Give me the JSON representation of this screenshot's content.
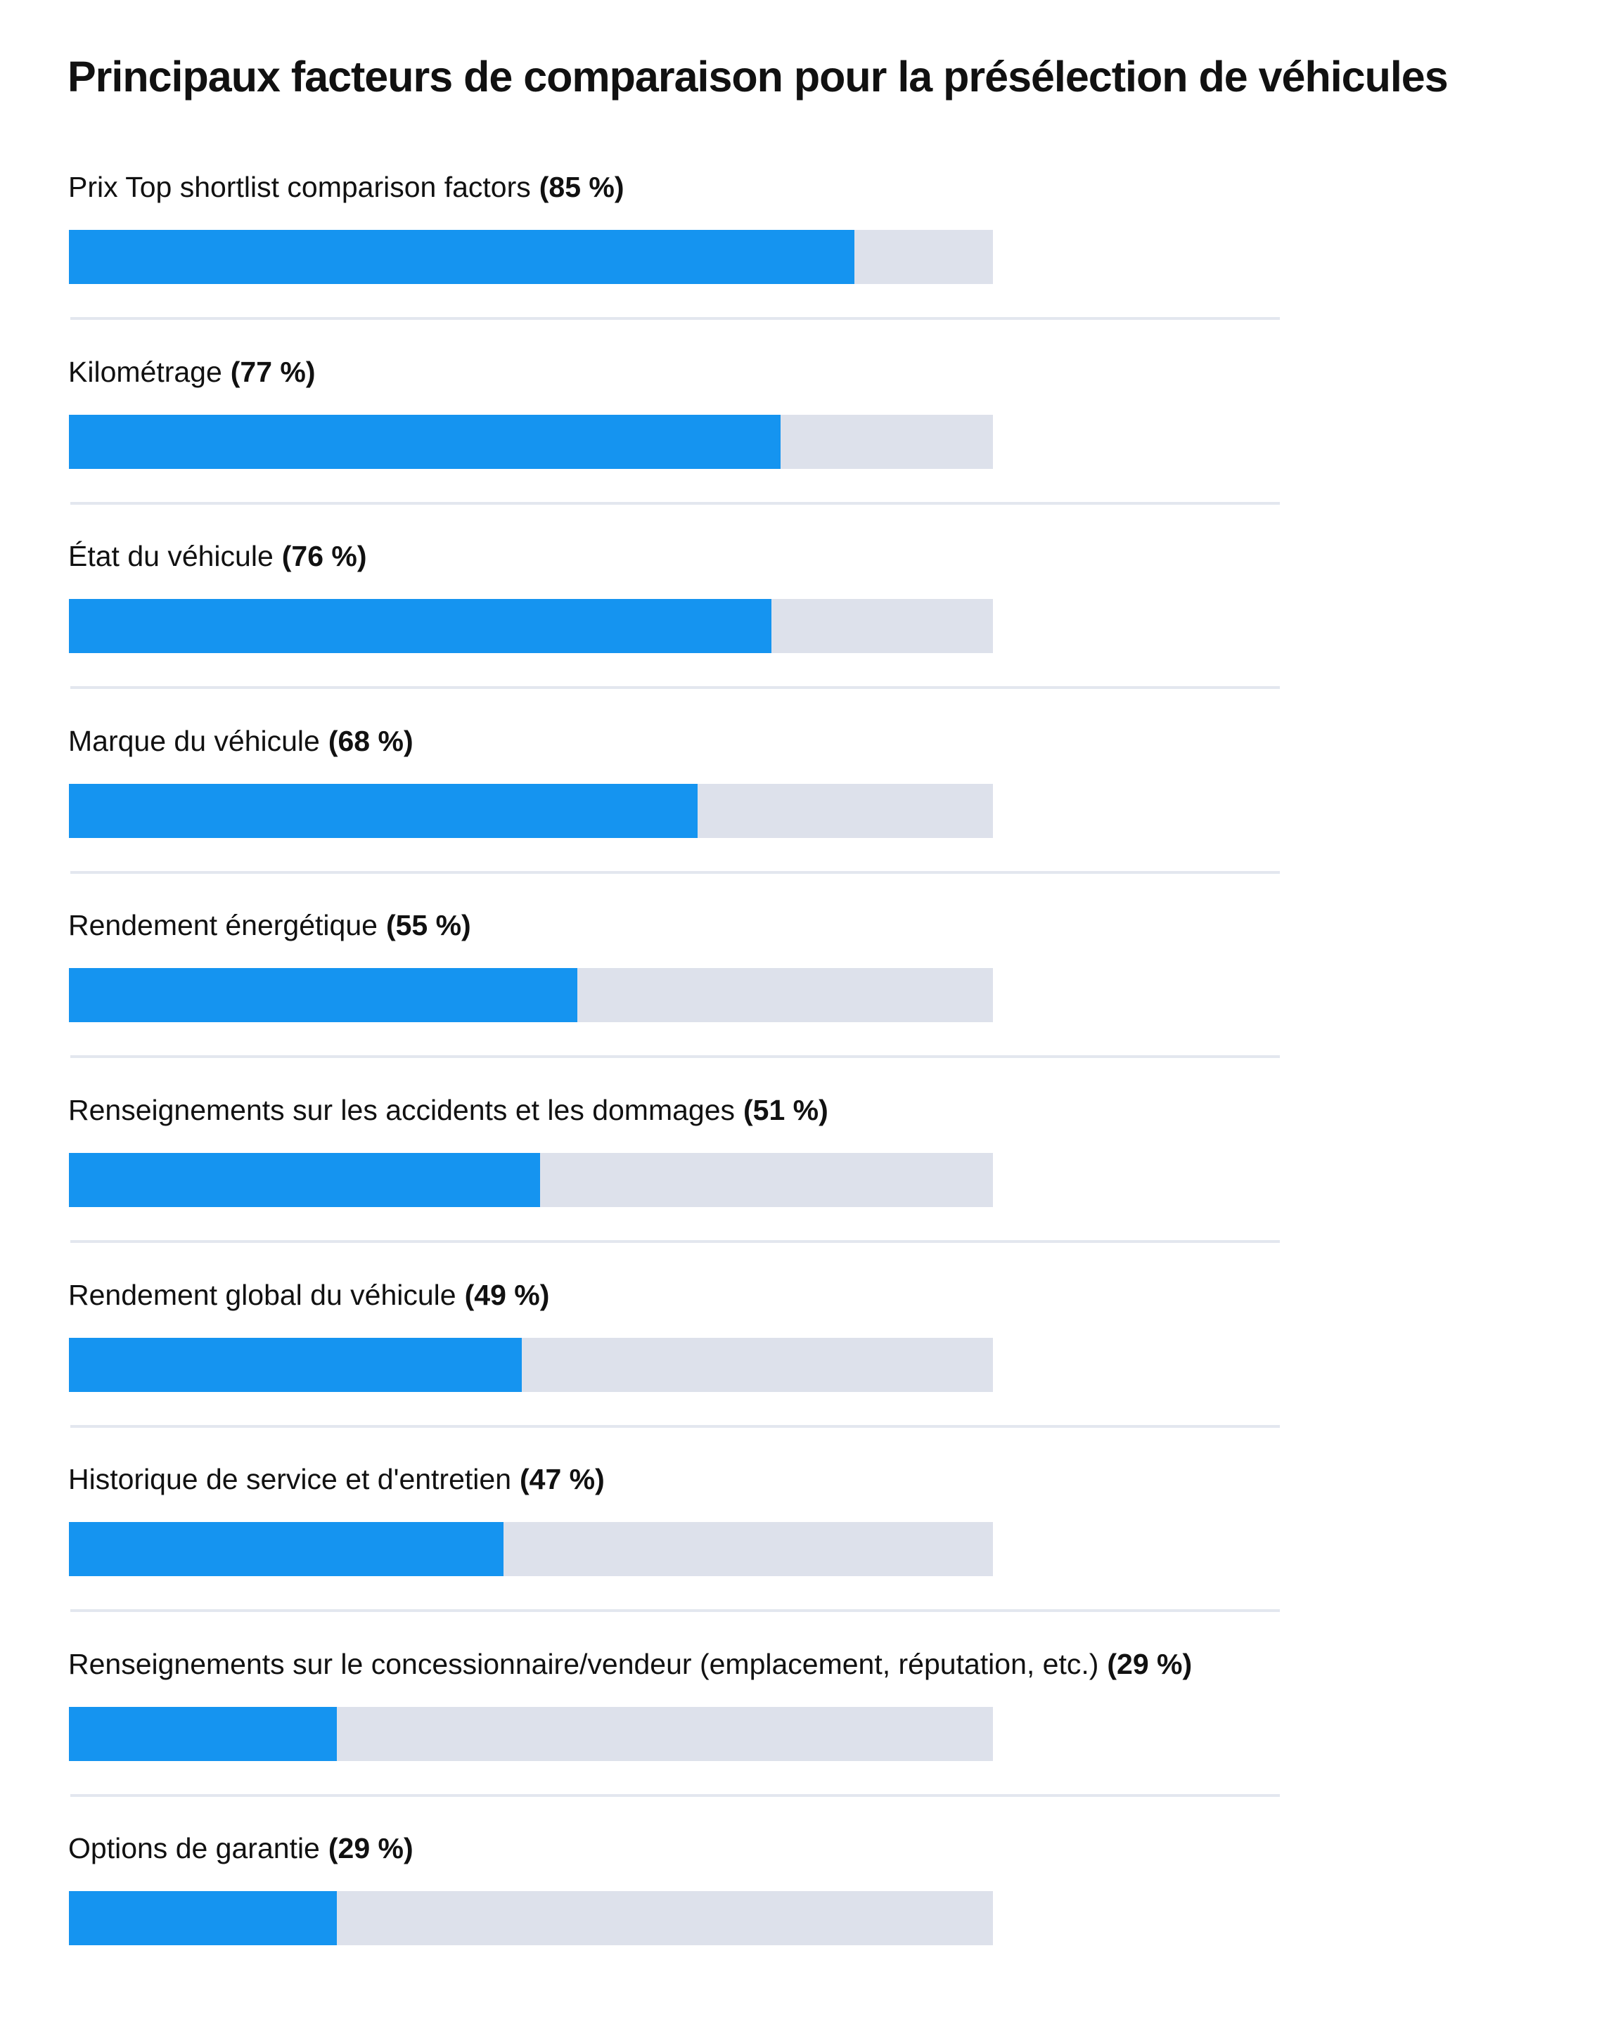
{
  "title": "Principaux facteurs de comparaison pour la présélection de véhicules",
  "chart_data": {
    "type": "bar",
    "orientation": "horizontal",
    "title": "Principaux facteurs de comparaison pour la présélection de véhicules",
    "xlim": [
      0,
      100
    ],
    "unit": "%",
    "bar_color": "#1594f0",
    "track_color": "#dde1eb",
    "grid": false,
    "items": [
      {
        "label": "Prix Top shortlist comparison factors",
        "value": 85,
        "value_label": "(85 %)"
      },
      {
        "label": "Kilométrage",
        "value": 77,
        "value_label": "(77 %)"
      },
      {
        "label": "État du véhicule",
        "value": 76,
        "value_label": "(76 %)"
      },
      {
        "label": "Marque du véhicule",
        "value": 68,
        "value_label": "(68 %)"
      },
      {
        "label": "Rendement énergétique",
        "value": 55,
        "value_label": "(55 %)"
      },
      {
        "label": "Renseignements sur les accidents et les dommages",
        "value": 51,
        "value_label": "(51 %)"
      },
      {
        "label": "Rendement global du véhicule",
        "value": 49,
        "value_label": "(49 %)"
      },
      {
        "label": "Historique de service et d'entretien",
        "value": 47,
        "value_label": "(47 %)"
      },
      {
        "label": "Renseignements sur le concessionnaire/vendeur (emplacement, réputation, etc.)",
        "value": 29,
        "value_label": "(29 %)"
      },
      {
        "label": "Options de garantie",
        "value": 29,
        "value_label": "(29 %)"
      }
    ]
  }
}
